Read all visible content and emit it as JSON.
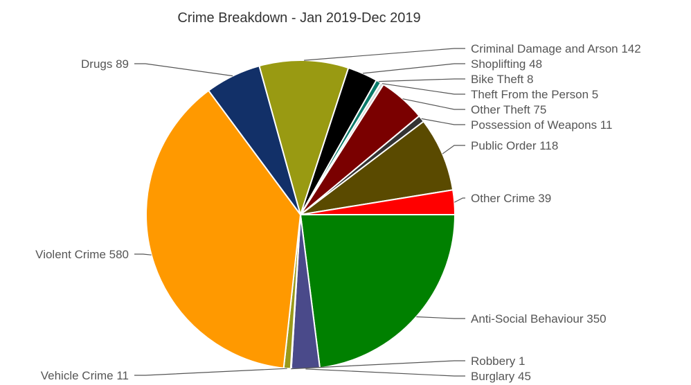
{
  "chart_data": {
    "type": "pie",
    "title": "Crime Breakdown - Jan 2019-Dec 2019",
    "slices": [
      {
        "label": "Anti-Social Behaviour",
        "value": 350,
        "color": "#008000"
      },
      {
        "label": "Burglary",
        "value": 45,
        "color": "#4a4a8a"
      },
      {
        "label": "Robbery",
        "value": 1,
        "color": "#5b8fd6"
      },
      {
        "label": "Vehicle Crime",
        "value": 11,
        "color": "#9a9a1a"
      },
      {
        "label": "Violent Crime",
        "value": 580,
        "color": "#ff9900"
      },
      {
        "label": "Drugs",
        "value": 89,
        "color": "#123068"
      },
      {
        "label": "Criminal Damage and Arson",
        "value": 142,
        "color": "#999a12"
      },
      {
        "label": "Shoplifting",
        "value": 48,
        "color": "#000000"
      },
      {
        "label": "Bike Theft",
        "value": 8,
        "color": "#0a7a6a"
      },
      {
        "label": "Theft From the Person",
        "value": 5,
        "color": "#d8d8d8"
      },
      {
        "label": "Other Theft",
        "value": 75,
        "color": "#7a0000"
      },
      {
        "label": "Possession of Weapons",
        "value": 11,
        "color": "#333333"
      },
      {
        "label": "Public Order",
        "value": 118,
        "color": "#5a4a00"
      },
      {
        "label": "Other Crime",
        "value": 39,
        "color": "#ff0000"
      }
    ]
  }
}
